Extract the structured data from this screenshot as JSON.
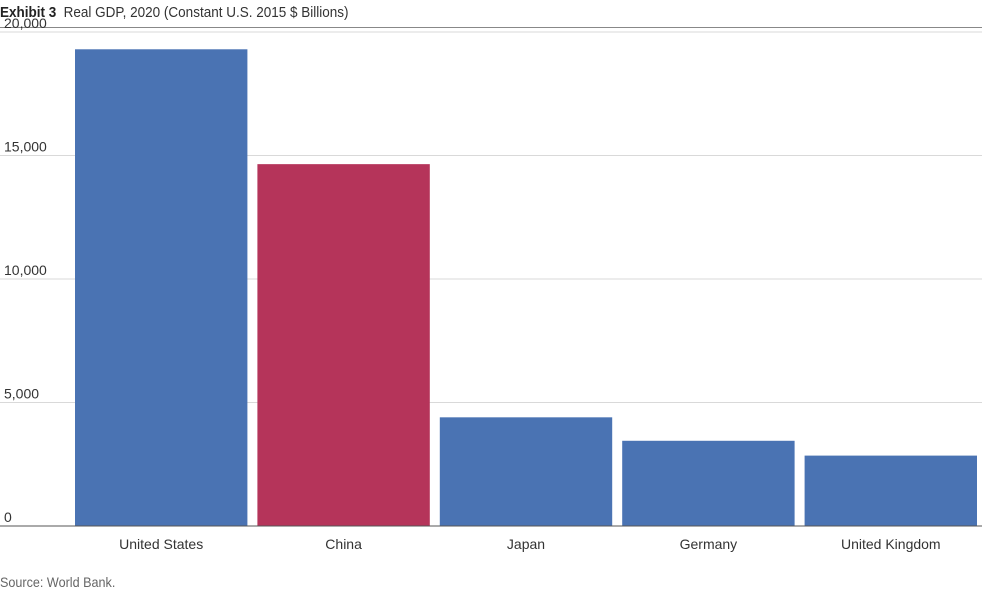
{
  "header": {
    "exhibit": "Exhibit 3",
    "title": "Real GDP, 2020 (Constant U.S. 2015 $ Billions)"
  },
  "footer": {
    "source": "Source: World Bank."
  },
  "colors": {
    "bar_default": "#4a73b3",
    "bar_highlight": "#b5345a",
    "gridline": "#d9d9d9",
    "axis": "#555555"
  },
  "chart_data": {
    "type": "bar",
    "title": "Real GDP, 2020 (Constant U.S. 2015 $ Billions)",
    "xlabel": "",
    "ylabel": "",
    "categories": [
      "United States",
      "China",
      "Japan",
      "Germany",
      "United Kingdom"
    ],
    "values": [
      19300,
      14650,
      4400,
      3450,
      2850
    ],
    "highlight": [
      "China"
    ],
    "ylim": [
      0,
      20000
    ],
    "yticks": [
      0,
      5000,
      10000,
      15000,
      20000
    ],
    "ytick_labels": [
      "0",
      "5,000",
      "10,000",
      "15,000",
      "20,000"
    ],
    "grid": true,
    "legend": "none"
  }
}
